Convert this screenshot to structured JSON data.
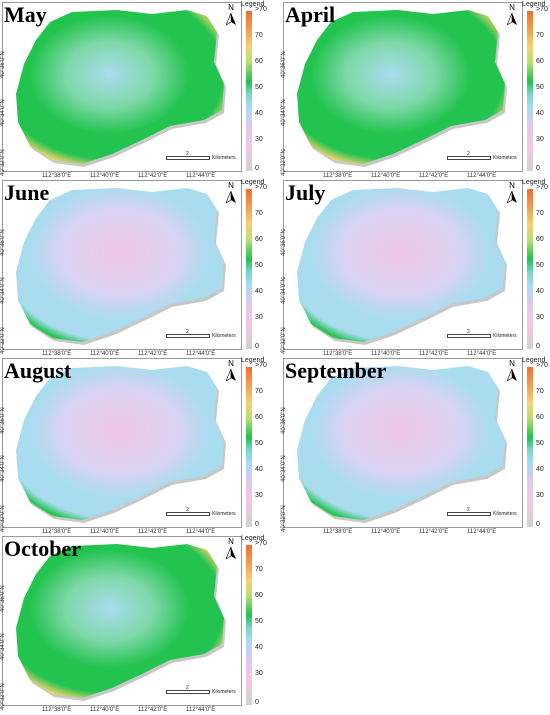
{
  "panels": [
    {
      "month": "May",
      "n": "N",
      "legend": "Legend",
      "ticks": [
        ">70",
        "70",
        "60",
        "50",
        "40",
        "30",
        "0"
      ],
      "lats": [
        "40°36'0\"N",
        "40°34'0\"N",
        "40°32'0\"N"
      ],
      "lons": [
        "112°38'0\"E",
        "112°40'0\"E",
        "112°42'0\"E",
        "112°44'0\"E"
      ],
      "scale": "2",
      "unit": "Kilometers",
      "tone": "green"
    },
    {
      "month": "April",
      "n": "N",
      "legend": "Legend",
      "ticks": [
        ">70",
        "70",
        "60",
        "50",
        "40",
        "30",
        "0"
      ],
      "lats": [
        "40°36'0\"N",
        "40°34'0\"N",
        "40°32'0\"N"
      ],
      "lons": [
        "112°38'0\"E",
        "112°40'0\"E",
        "112°42'0\"E",
        "112°44'0\"E"
      ],
      "scale": "2",
      "unit": "Kilometers",
      "tone": "green"
    },
    {
      "month": "June",
      "n": "N",
      "legend": "Legend",
      "ticks": [
        ">70",
        "70",
        "60",
        "50",
        "40",
        "30",
        "0"
      ],
      "lats": [
        "40°36'0\"N",
        "40°34'0\"N",
        "40°32'0\"N"
      ],
      "lons": [
        "112°38'0\"E",
        "112°40'0\"E",
        "112°42'0\"E",
        "112°44'0\"E"
      ],
      "scale": "2",
      "unit": "Kilometers",
      "tone": "pale"
    },
    {
      "month": "July",
      "n": "N",
      "legend": "Legend",
      "ticks": [
        ">70",
        "70",
        "60",
        "50",
        "40",
        "30",
        "0"
      ],
      "lats": [
        "40°36'0\"N",
        "40°34'0\"N",
        "40°32'0\"N"
      ],
      "lons": [
        "112°38'0\"E",
        "112°40'0\"E",
        "112°42'0\"E",
        "112°44'0\"E"
      ],
      "scale": "2",
      "unit": "Kilometers",
      "tone": "pale"
    },
    {
      "month": "August",
      "n": "N",
      "legend": "Legend",
      "ticks": [
        ">70",
        "70",
        "60",
        "50",
        "40",
        "30",
        "0"
      ],
      "lats": [
        "40°36'0\"N",
        "40°34'0\"N",
        "40°32'0\"N"
      ],
      "lons": [
        "112°38'0\"E",
        "112°40'0\"E",
        "112°42'0\"E",
        "112°44'0\"E"
      ],
      "scale": "2",
      "unit": "Kilometers",
      "tone": "pale"
    },
    {
      "month": "September",
      "n": "N",
      "legend": "Legend",
      "ticks": [
        ">70",
        "70",
        "60",
        "50",
        "40",
        "30",
        "0"
      ],
      "lats": [
        "40°36'0\"N",
        "40°34'0\"N",
        "40°32'0\"N"
      ],
      "lons": [
        "112°38'0\"E",
        "112°40'0\"E",
        "112°42'0\"E",
        "112°44'0\"E"
      ],
      "scale": "2",
      "unit": "Kilometers",
      "tone": "pale"
    },
    {
      "month": "October",
      "n": "N",
      "legend": "Legend",
      "ticks": [
        ">70",
        "70",
        "60",
        "50",
        "40",
        "30",
        "0"
      ],
      "lats": [
        "40°36'0\"N",
        "40°34'0\"N",
        "40°32'0\"N"
      ],
      "lons": [
        "112°38'0\"E",
        "112°40'0\"E",
        "112°42'0\"E",
        "112°44'0\"E"
      ],
      "scale": "2",
      "unit": "Kilometers",
      "tone": "green"
    }
  ],
  "colors": {
    "green": "#22c34f",
    "lightblue": "#a9dcef",
    "pink": "#efc6e4",
    "orange": "#f08a3c",
    "yellow": "#f4d36c",
    "grey": "#c8c8c8"
  }
}
